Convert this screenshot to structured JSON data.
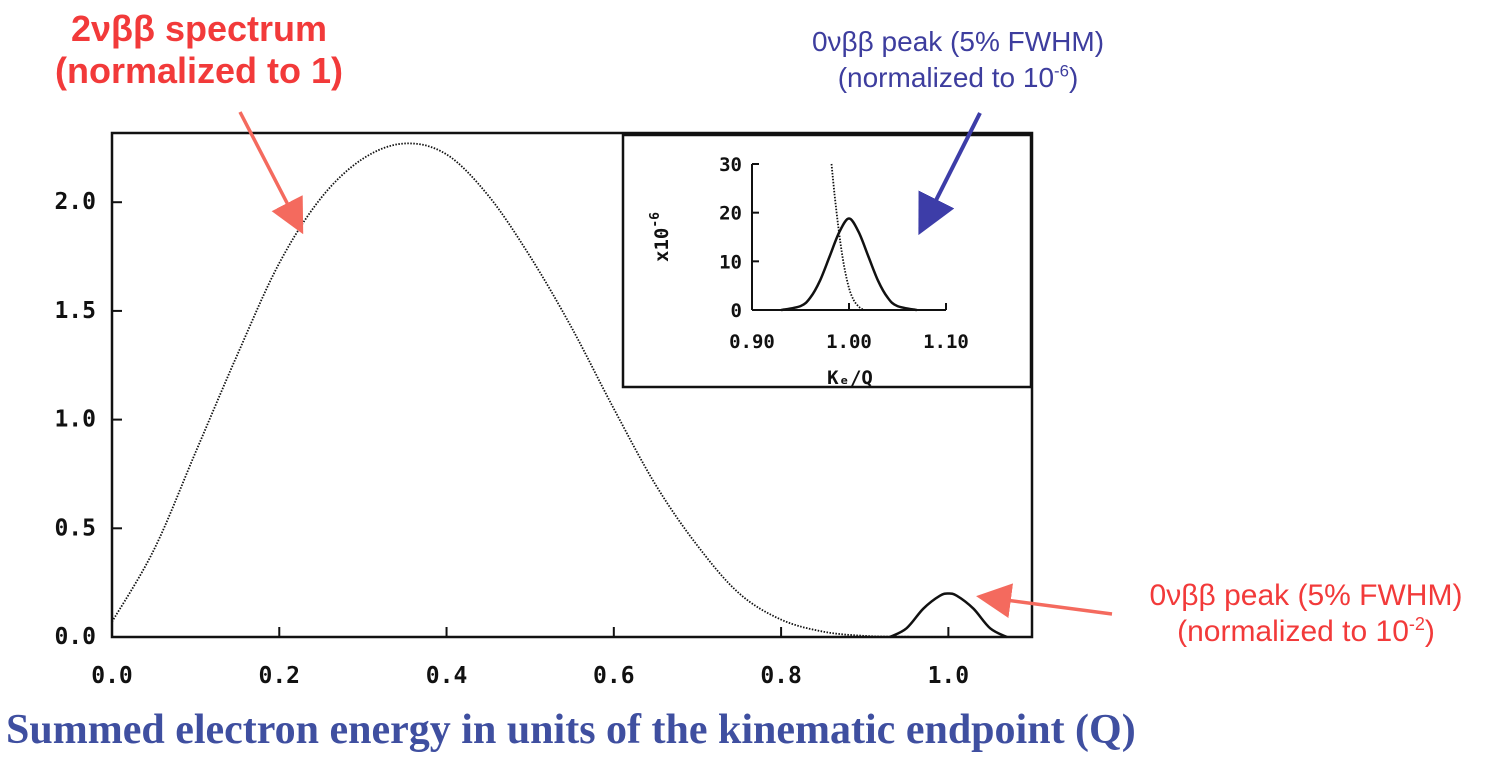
{
  "annotations": {
    "spectrum_2nbb": {
      "line1": "2νββ spectrum",
      "line2": "(normalized to 1)",
      "color": "#f23a3a"
    },
    "peak_inset": {
      "line1": "0νββ peak (5% FWHM)",
      "line2_prefix": "(normalized to 10",
      "line2_exp": "-6",
      "line2_suffix": ")",
      "color": "#3d3d9e"
    },
    "peak_main": {
      "line1": "0νββ peak (5% FWHM)",
      "line2_prefix": "(normalized to 10",
      "line2_exp": "-2",
      "line2_suffix": ")",
      "color": "#f23a3a"
    }
  },
  "caption": "Summed electron energy in units of the kinematic endpoint (Q)",
  "chart_data": [
    {
      "type": "line",
      "xlim": [
        0.0,
        1.1
      ],
      "ylim": [
        0.0,
        2.3
      ],
      "x_ticks": [
        "0.0",
        "0.2",
        "0.4",
        "0.6",
        "0.8",
        "1.0"
      ],
      "y_ticks": [
        "0.0",
        "0.5",
        "1.0",
        "1.5",
        "2.0"
      ],
      "xlabel": "",
      "ylabel": "",
      "series": [
        {
          "style": "dotted",
          "x": [
            0.0,
            0.05,
            0.1,
            0.15,
            0.2,
            0.25,
            0.3,
            0.35,
            0.4,
            0.45,
            0.5,
            0.55,
            0.6,
            0.65,
            0.7,
            0.75,
            0.8,
            0.85,
            0.9,
            0.95,
            1.0
          ],
          "y": [
            0.07,
            0.4,
            0.85,
            1.3,
            1.72,
            2.02,
            2.2,
            2.27,
            2.22,
            2.03,
            1.75,
            1.42,
            1.05,
            0.7,
            0.42,
            0.2,
            0.08,
            0.025,
            0.005,
            0.001,
            0.0
          ]
        },
        {
          "style": "solid",
          "x": [
            0.93,
            0.95,
            0.97,
            0.99,
            1.0,
            1.01,
            1.03,
            1.05,
            1.07
          ],
          "y": [
            0.0,
            0.04,
            0.13,
            0.19,
            0.2,
            0.19,
            0.13,
            0.04,
            0.0
          ]
        }
      ]
    },
    {
      "type": "line",
      "xlim": [
        0.9,
        1.1
      ],
      "ylim": [
        0,
        30
      ],
      "x_ticks": [
        "0.90",
        "1.00",
        "1.10"
      ],
      "y_ticks": [
        "0",
        "10",
        "20",
        "30"
      ],
      "xlabel": "Kₑ/Q",
      "ylabel_prefix": "x10",
      "ylabel_exp": "-6",
      "series": [
        {
          "style": "dotted",
          "x": [
            0.982,
            0.985,
            0.99,
            0.995,
            1.0,
            1.005,
            1.01,
            1.015
          ],
          "y": [
            30,
            24,
            15.5,
            9,
            4.5,
            2,
            0.7,
            0
          ]
        },
        {
          "style": "solid",
          "x": [
            0.93,
            0.95,
            0.96,
            0.97,
            0.98,
            0.99,
            1.0,
            1.01,
            1.02,
            1.03,
            1.04,
            1.05,
            1.07
          ],
          "y": [
            0.0,
            0.8,
            2.5,
            6,
            11,
            16,
            18.8,
            16,
            11,
            6,
            2.5,
            0.8,
            0.0
          ]
        }
      ]
    }
  ]
}
